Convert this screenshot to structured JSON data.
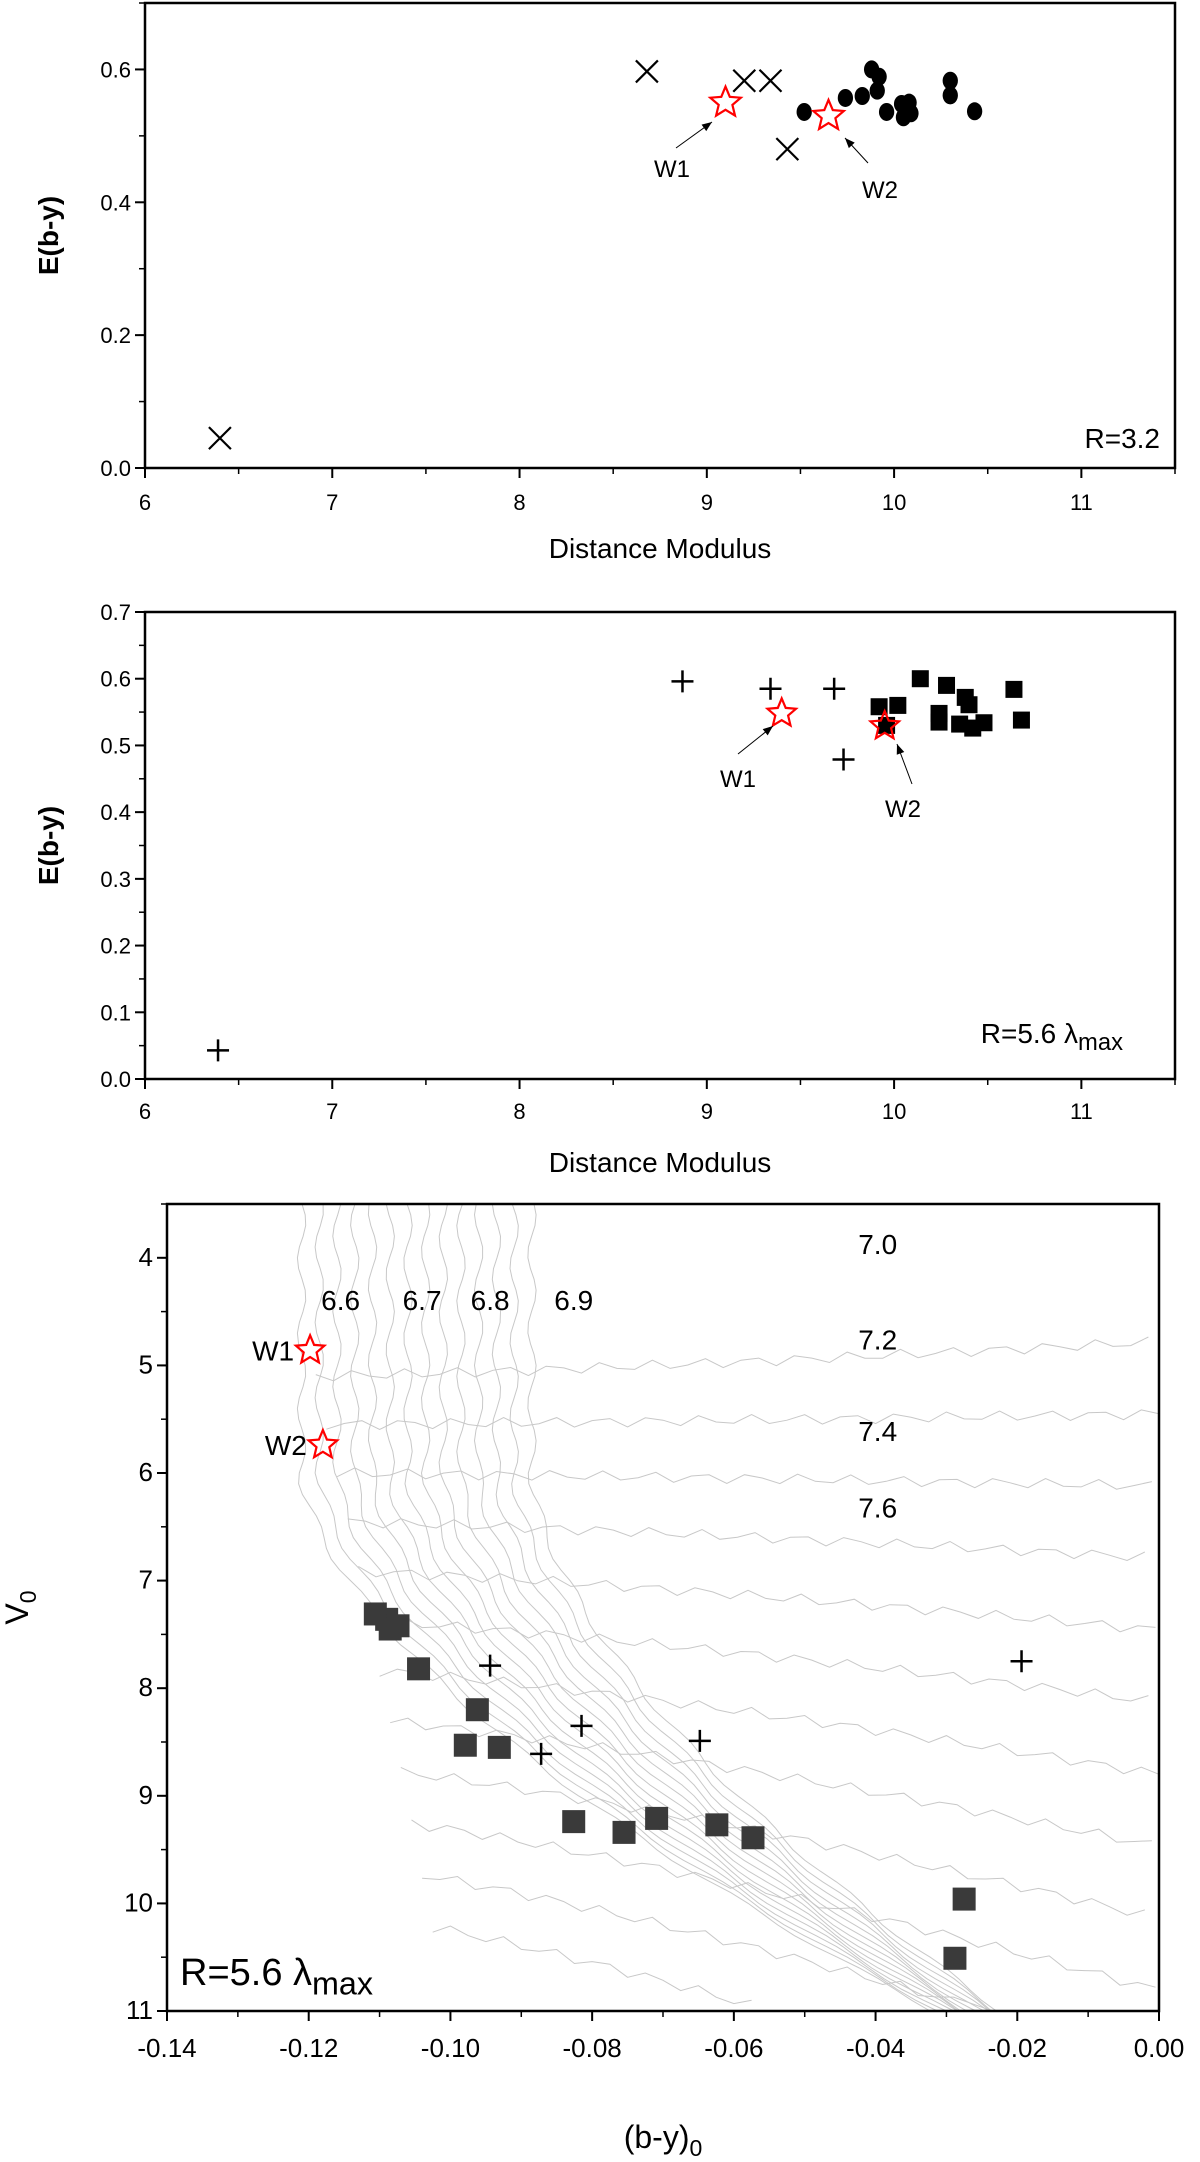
{
  "colors": {
    "star": "#ff0000",
    "marker": "#000000",
    "square3": "#3a3a3a",
    "isochrone": "#c8c8c8"
  },
  "chart_data": [
    {
      "type": "scatter",
      "xlabel": "Distance Modulus",
      "ylabel": "E(b-y)",
      "xlim": [
        6,
        11.5
      ],
      "ylim": [
        0,
        0.7
      ],
      "xticks": [
        "6",
        "7",
        "8",
        "9",
        "10",
        "11"
      ],
      "yticks": [
        "0.0",
        "0.2",
        "0.4",
        "0.6"
      ],
      "label": "R=3.2",
      "series": [
        {
          "name": "crosses",
          "marker": "x",
          "points": [
            [
              6.4,
              0.045
            ],
            [
              8.68,
              0.597
            ],
            [
              9.2,
              0.583
            ],
            [
              9.34,
              0.583
            ],
            [
              9.43,
              0.48
            ]
          ]
        },
        {
          "name": "circles",
          "marker": "circle",
          "points": [
            [
              9.52,
              0.536
            ],
            [
              9.74,
              0.557
            ],
            [
              9.83,
              0.56
            ],
            [
              9.88,
              0.6
            ],
            [
              9.92,
              0.589
            ],
            [
              9.91,
              0.568
            ],
            [
              9.96,
              0.536
            ],
            [
              10.04,
              0.548
            ],
            [
              10.08,
              0.55
            ],
            [
              10.05,
              0.528
            ],
            [
              10.09,
              0.534
            ],
            [
              10.3,
              0.583
            ],
            [
              10.3,
              0.561
            ],
            [
              10.43,
              0.537
            ]
          ]
        },
        {
          "name": "stars",
          "marker": "star",
          "points": [
            [
              9.1,
              0.55
            ],
            [
              9.65,
              0.53
            ]
          ]
        }
      ],
      "annotations": [
        "W1",
        "W2"
      ]
    },
    {
      "type": "scatter",
      "xlabel": "Distance Modulus",
      "ylabel": "E(b-y)",
      "xlim": [
        6,
        11.5
      ],
      "ylim": [
        0,
        0.7
      ],
      "xticks": [
        "6",
        "7",
        "8",
        "9",
        "10",
        "11"
      ],
      "yticks": [
        "0.0",
        "0.1",
        "0.2",
        "0.3",
        "0.4",
        "0.5",
        "0.6",
        "0.7"
      ],
      "label": "R=5.6 ",
      "label_lambda": "λ",
      "label_sub": "max",
      "series": [
        {
          "name": "plus",
          "marker": "plus",
          "points": [
            [
              6.39,
              0.043
            ],
            [
              8.87,
              0.596
            ],
            [
              9.34,
              0.585
            ],
            [
              9.68,
              0.585
            ],
            [
              9.73,
              0.479
            ]
          ]
        },
        {
          "name": "squares",
          "marker": "square",
          "points": [
            [
              9.92,
              0.558
            ],
            [
              10.02,
              0.56
            ],
            [
              10.14,
              0.6
            ],
            [
              10.28,
              0.59
            ],
            [
              10.24,
              0.548
            ],
            [
              10.24,
              0.535
            ],
            [
              10.38,
              0.572
            ],
            [
              10.4,
              0.561
            ],
            [
              10.35,
              0.532
            ],
            [
              10.42,
              0.526
            ],
            [
              10.48,
              0.534
            ],
            [
              10.64,
              0.584
            ],
            [
              10.68,
              0.538
            ],
            [
              9.96,
              0.53
            ]
          ]
        },
        {
          "name": "stars",
          "marker": "star",
          "points": [
            [
              9.4,
              0.548
            ],
            [
              9.95,
              0.529
            ]
          ]
        }
      ],
      "annotations": [
        "W1",
        "W2"
      ]
    },
    {
      "type": "scatter",
      "xlabel": "(b-y)",
      "xlabel_sub": "0",
      "ylabel": "V",
      "ylabel_sub": "0",
      "xlim": [
        -0.14,
        0.0
      ],
      "ylim": [
        11,
        3.5
      ],
      "xticks": [
        "-0.14",
        "-0.12",
        "-0.10",
        "-0.08",
        "-0.06",
        "-0.04",
        "-0.02",
        "0.00"
      ],
      "yticks": [
        "4",
        "5",
        "6",
        "7",
        "8",
        "9",
        "10",
        "11"
      ],
      "label": "R=5.6 ",
      "label_lambda": "λ",
      "label_sub": "max",
      "series": [
        {
          "name": "squares",
          "marker": "square",
          "points": [
            [
              -0.1106,
              7.31
            ],
            [
              -0.109,
              7.36
            ],
            [
              -0.1085,
              7.45
            ],
            [
              -0.1074,
              7.42
            ],
            [
              -0.1045,
              7.82
            ],
            [
              -0.0962,
              8.2
            ],
            [
              -0.0979,
              8.53
            ],
            [
              -0.0931,
              8.55
            ],
            [
              -0.0826,
              9.24
            ],
            [
              -0.0755,
              9.34
            ],
            [
              -0.0709,
              9.21
            ],
            [
              -0.0624,
              9.27
            ],
            [
              -0.0573,
              9.39
            ],
            [
              -0.0275,
              9.96
            ],
            [
              -0.0288,
              10.51
            ]
          ]
        },
        {
          "name": "plus",
          "marker": "plus",
          "points": [
            [
              -0.0944,
              7.79
            ],
            [
              -0.0815,
              8.35
            ],
            [
              -0.0872,
              8.61
            ],
            [
              -0.0648,
              8.49
            ],
            [
              -0.0194,
              7.75
            ]
          ]
        },
        {
          "name": "stars",
          "marker": "star",
          "points": [
            [
              -0.1198,
              4.86
            ],
            [
              -0.118,
              5.74
            ]
          ]
        }
      ],
      "star_labels": [
        "W1",
        "W2"
      ],
      "isochrone_labels": [
        {
          "text": "6.6",
          "x": -0.1155,
          "y": 4.39
        },
        {
          "text": "6.7",
          "x": -0.104,
          "y": 4.39
        },
        {
          "text": "6.8",
          "x": -0.0944,
          "y": 4.39
        },
        {
          "text": "6.9",
          "x": -0.0826,
          "y": 4.39
        },
        {
          "text": "7.0",
          "x": -0.0397,
          "y": 3.87
        },
        {
          "text": "7.2",
          "x": -0.0397,
          "y": 4.76
        },
        {
          "text": "7.4",
          "x": -0.0397,
          "y": 5.61
        },
        {
          "text": "7.6",
          "x": -0.0397,
          "y": 6.32
        }
      ]
    }
  ]
}
